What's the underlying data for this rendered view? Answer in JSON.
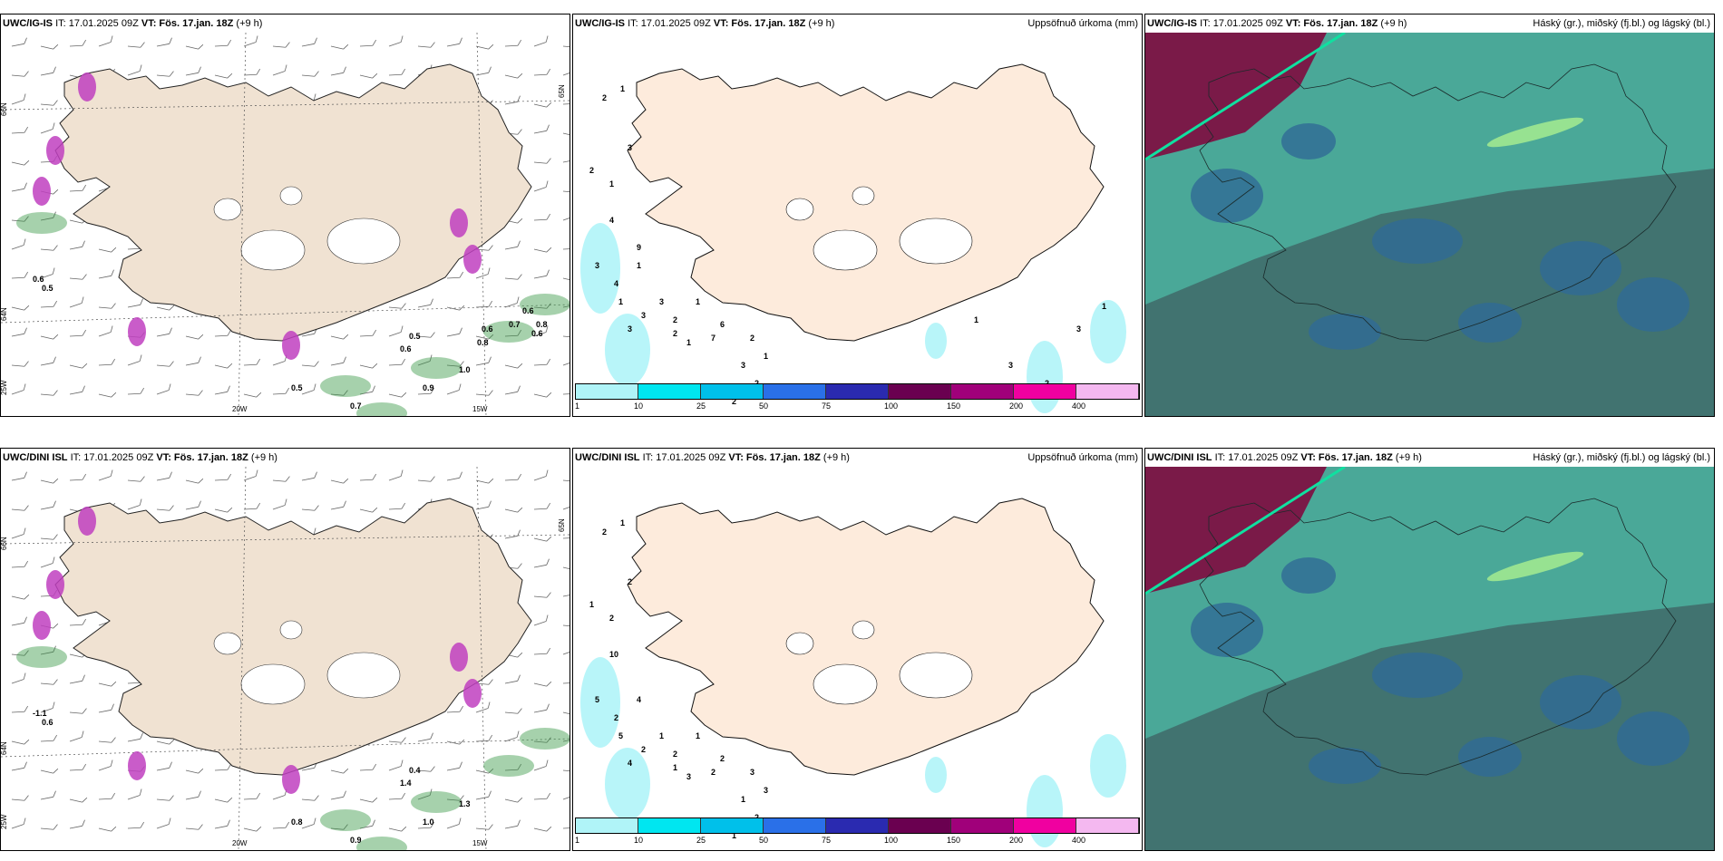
{
  "panels": [
    {
      "id": "p1",
      "model": "UWC/IG-IS",
      "it": "IT: 17.01.2025 09Z",
      "vt_label": "VT:",
      "vt": "Fös. 17.jan. 18Z",
      "lead": "(+9 h)",
      "right_title": "",
      "type": "temp"
    },
    {
      "id": "p2",
      "model": "UWC/IG-IS",
      "it": "IT: 17.01.2025 09Z",
      "vt_label": "VT:",
      "vt": "Fös. 17.jan. 18Z",
      "lead": "(+9 h)",
      "right_title": "Uppsöfnuð úrkoma (mm)",
      "type": "precip"
    },
    {
      "id": "p3",
      "model": "UWC/IG-IS",
      "it": "IT: 17.01.2025 09Z",
      "vt_label": "VT:",
      "vt": "Fös. 17.jan. 18Z",
      "lead": "(+9 h)",
      "right_title": "Háský (gr.), miðský (fj.bl.) og lágský (bl.)",
      "type": "cloud"
    },
    {
      "id": "p4",
      "model": "UWC/DINI ISL",
      "it": "IT: 17.01.2025 09Z",
      "vt_label": "VT:",
      "vt": "Fös. 17.jan. 18Z",
      "lead": "(+9 h)",
      "right_title": "",
      "type": "temp"
    },
    {
      "id": "p5",
      "model": "UWC/DINI ISL",
      "it": "IT: 17.01.2025 09Z",
      "vt_label": "VT:",
      "vt": "Fös. 17.jan. 18Z",
      "lead": "(+9 h)",
      "right_title": "Uppsöfnuð úrkoma (mm)",
      "type": "precip"
    },
    {
      "id": "p6",
      "model": "UWC/DINI ISL",
      "it": "IT: 17.01.2025 09Z",
      "vt_label": "VT:",
      "vt": "Fös. 17.jan. 18Z",
      "lead": "(+9 h)",
      "right_title": "Háský (gr.), miðský (fj.bl.) og lágský (bl.)",
      "type": "cloud"
    }
  ],
  "axis_labels": {
    "lon1": "20W",
    "lon2": "15W",
    "lat_top": "66N",
    "lat_mid": "64N",
    "lat_bot": "25W",
    "lat_right": "65N"
  },
  "precip_legend": {
    "labels": [
      "1",
      "10",
      "25",
      "50",
      "75",
      "100",
      "150",
      "200",
      "400"
    ],
    "colors": [
      "#b0f4f8",
      "#00e6f0",
      "#00c0ea",
      "#2a70e8",
      "#2a2ab0",
      "#6a0050",
      "#a0007a",
      "#f000a0",
      "#f4b8f0"
    ]
  },
  "temp_labels": {
    "p1": [
      "0.6",
      "0.5",
      "0.5",
      "0.6",
      "1.0",
      "0.9",
      "0.7",
      "0.5",
      "0.6",
      "0.8",
      "0.7",
      "0.6",
      "0.8",
      "0.6"
    ],
    "p4": [
      "-1.1",
      "0.6",
      "0.8",
      "1.4",
      "1.3",
      "1.0",
      "0.9",
      "0.4"
    ]
  },
  "precip_labels": {
    "p2": [
      "1",
      "2",
      "2",
      "1",
      "3",
      "4",
      "3",
      "4",
      "1",
      "1",
      "3",
      "3",
      "2",
      "1",
      "2",
      "1",
      "3",
      "6",
      "7",
      "2",
      "1",
      "3",
      "2",
      "2",
      "3",
      "2",
      "3",
      "1",
      "1",
      "9"
    ],
    "p5": [
      "1",
      "2",
      "1",
      "2",
      "2",
      "10",
      "5",
      "2",
      "4",
      "5",
      "1",
      "2",
      "2",
      "1",
      "1",
      "3",
      "4",
      "2",
      "2",
      "3",
      "3",
      "1",
      "2",
      "1"
    ]
  },
  "colors": {
    "land": "#f0e2d2",
    "land_p": "#fdebdc",
    "cloud_bg": "#4aa898",
    "cloud_dark": "#3f6a68",
    "cloud_blue": "#2f6a96",
    "cloud_maroon": "#7a1a48",
    "purple": "#c040c0",
    "green": "#3a9a48"
  }
}
